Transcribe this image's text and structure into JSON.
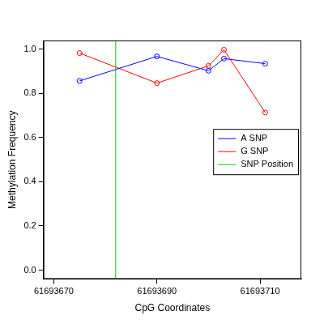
{
  "chart_data": {
    "type": "line",
    "x_label": "CpG Coordinates",
    "y_label": "Methylation Frequency",
    "x": [
      61693675,
      61693690,
      61693700,
      61693703,
      61693711
    ],
    "series": [
      {
        "name": "A SNP",
        "color": "#0000ff",
        "marker": "circle",
        "values": [
          0.857,
          0.968,
          0.903,
          0.958,
          0.935
        ]
      },
      {
        "name": "G SNP",
        "color": "#ff0000",
        "marker": "circle",
        "values": [
          0.983,
          0.847,
          0.925,
          0.998,
          0.714
        ]
      }
    ],
    "snp_position": {
      "name": "SNP Position",
      "color": "#00cc00",
      "x": 61693682
    },
    "xlim": [
      61693668,
      61693718
    ],
    "xticks": [
      61693670,
      61693690,
      61693710
    ],
    "ylim": [
      -0.04,
      1.04
    ],
    "yticks": [
      {
        "value": 0,
        "label": "0.0"
      },
      0.2,
      0.4,
      0.6,
      0.8,
      {
        "value": 1,
        "label": "1.0"
      }
    ],
    "grid": false,
    "legend": "right"
  }
}
